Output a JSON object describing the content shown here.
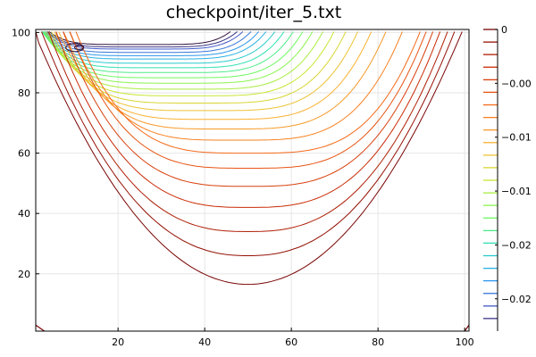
{
  "chart_data": {
    "type": "contour",
    "title": "checkpoint/iter_5.txt",
    "xlabel": "",
    "ylabel": "",
    "xlim": [
      1,
      101
    ],
    "ylim": [
      1,
      101
    ],
    "x_ticks": [
      20,
      40,
      60,
      80,
      100
    ],
    "y_ticks": [
      20,
      40,
      60,
      80,
      100
    ],
    "grid": true,
    "colormap": "turbo",
    "colorbar": {
      "placement": "right",
      "range": [
        -0.028,
        0
      ],
      "tick_labels": [
        "0",
        "−0.00",
        "−0.01",
        "−0.01",
        "−0.02",
        "−0.02"
      ],
      "tick_values": [
        0,
        -0.005,
        -0.01,
        -0.015,
        -0.02,
        -0.025
      ]
    },
    "levels": [
      0,
      -0.00117,
      -0.00233,
      -0.0035,
      -0.00467,
      -0.00583,
      -0.007,
      -0.00817,
      -0.00933,
      -0.0105,
      -0.01167,
      -0.01283,
      -0.014,
      -0.01517,
      -0.01633,
      -0.0175,
      -0.01867,
      -0.01983,
      -0.021,
      -0.02217,
      -0.02333,
      -0.0245,
      -0.02567,
      -0.02683
    ],
    "contour_bottom_y": [
      96,
      95.2,
      94.5,
      93.4,
      92.3,
      91.2,
      89.8,
      88.3,
      86.7,
      85,
      83.2,
      81.2,
      79,
      76.6,
      74.1,
      71.2,
      68,
      64.3,
      60,
      55,
      49,
      42,
      34,
      26,
      16.5
    ],
    "eddy": {
      "center": [
        10,
        95
      ],
      "levels": [
        -0.0275,
        -0.028
      ]
    }
  }
}
